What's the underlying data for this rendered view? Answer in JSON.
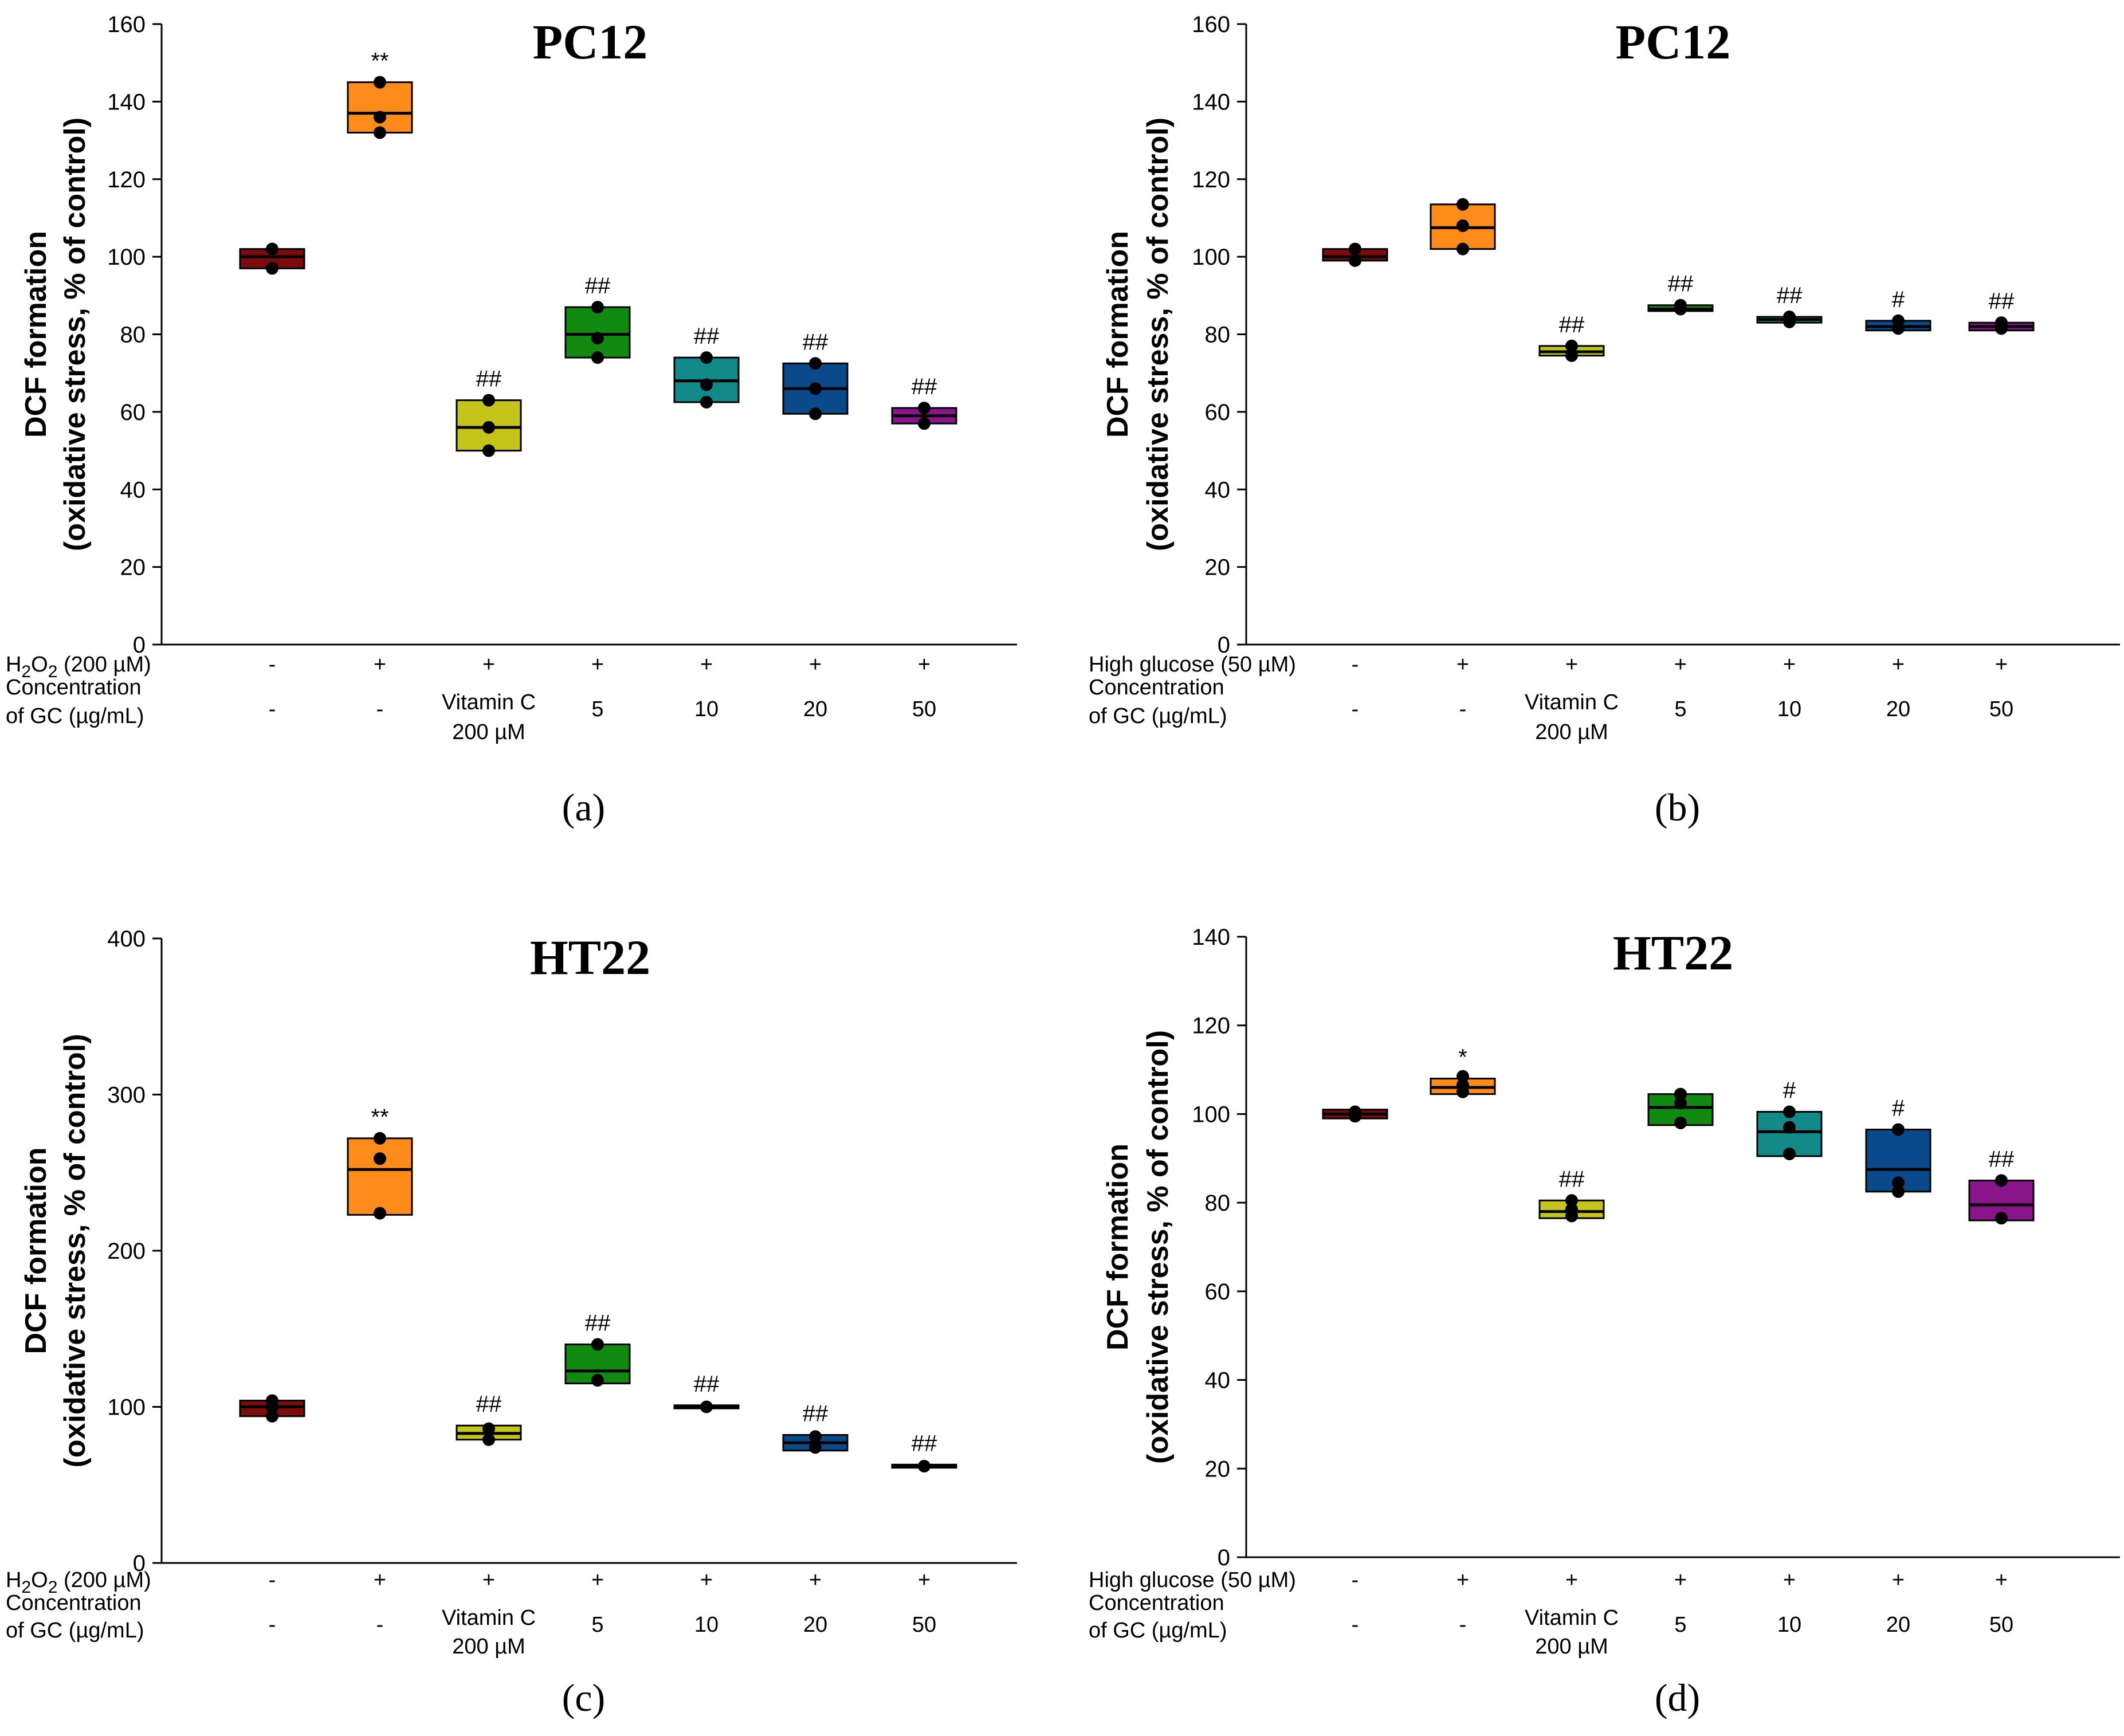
{
  "figure": {
    "x_row1_label_h2o2": "H2O2 (200 µM)",
    "x_row1_label_glucose": "High glucose (50 µM)",
    "x_row2_label_a": "Concentration",
    "x_row2_label_b": "of GC (µg/mL)"
  },
  "chart_data": [
    {
      "type": "box",
      "panel": "(a)",
      "title": "PC12",
      "ylabel_line1": "DCF formation",
      "ylabel_line2": "(oxidative stress, % of control)",
      "ylim": [
        0,
        160
      ],
      "yticks": [
        0,
        20,
        40,
        60,
        80,
        100,
        120,
        140,
        160
      ],
      "row1_label": "H2O2 (200 µM)",
      "row1": [
        "-",
        "+",
        "+",
        "+",
        "+",
        "+",
        "+"
      ],
      "row2": [
        "-",
        "-",
        "Vitamin C",
        "5",
        "10",
        "20",
        "50"
      ],
      "row2_sub": [
        "",
        "",
        "200 µM",
        "",
        "",
        "",
        ""
      ],
      "colors": [
        "#7a0c0c",
        "#ff8c1a",
        "#c4c41a",
        "#128a12",
        "#128a8a",
        "#0a4a8a",
        "#8a148a"
      ],
      "boxes": [
        {
          "low": 97,
          "high": 102,
          "median": 100,
          "points": [
            97,
            102
          ],
          "sig": ""
        },
        {
          "low": 132,
          "high": 145,
          "median": 137,
          "points": [
            132,
            136,
            145
          ],
          "sig": "**"
        },
        {
          "low": 50,
          "high": 63,
          "median": 56,
          "points": [
            50,
            56,
            63
          ],
          "sig": "##"
        },
        {
          "low": 74,
          "high": 87,
          "median": 80,
          "points": [
            74,
            79,
            87
          ],
          "sig": "##"
        },
        {
          "low": 62.5,
          "high": 74,
          "median": 68,
          "points": [
            62.5,
            67,
            74
          ],
          "sig": "##"
        },
        {
          "low": 59.5,
          "high": 72.5,
          "median": 66,
          "points": [
            59.5,
            66,
            72.5
          ],
          "sig": "##"
        },
        {
          "low": 57,
          "high": 61,
          "median": 59,
          "points": [
            57,
            61
          ],
          "sig": "##"
        }
      ]
    },
    {
      "type": "box",
      "panel": "(b)",
      "title": "PC12",
      "ylabel_line1": "DCF formation",
      "ylabel_line2": "(oxidative stress, % of control)",
      "ylim": [
        0,
        160
      ],
      "yticks": [
        0,
        20,
        40,
        60,
        80,
        100,
        120,
        140,
        160
      ],
      "row1_label": "High glucose (50 µM)",
      "row1": [
        "-",
        "+",
        "+",
        "+",
        "+",
        "+",
        "+"
      ],
      "row2": [
        "-",
        "-",
        "Vitamin C",
        "5",
        "10",
        "20",
        "50"
      ],
      "row2_sub": [
        "",
        "",
        "200 µM",
        "",
        "",
        "",
        ""
      ],
      "colors": [
        "#7a0c0c",
        "#ff8c1a",
        "#c4c41a",
        "#128a12",
        "#128a8a",
        "#0a4a8a",
        "#8a148a"
      ],
      "boxes": [
        {
          "low": 99,
          "high": 102,
          "median": 100,
          "points": [
            99,
            102
          ],
          "sig": ""
        },
        {
          "low": 102,
          "high": 113.5,
          "median": 107.5,
          "points": [
            102,
            108,
            113.5
          ],
          "sig": ""
        },
        {
          "low": 74.5,
          "high": 77,
          "median": 75.5,
          "points": [
            74.5,
            77
          ],
          "sig": "##"
        },
        {
          "low": 86,
          "high": 87.5,
          "median": 86.5,
          "points": [
            86.5,
            87.5
          ],
          "sig": "##"
        },
        {
          "low": 83,
          "high": 84.5,
          "median": 83.8,
          "points": [
            83.2,
            84.5
          ],
          "sig": "##"
        },
        {
          "low": 81,
          "high": 83.5,
          "median": 82,
          "points": [
            81.5,
            83.5
          ],
          "sig": "#"
        },
        {
          "low": 81,
          "high": 83,
          "median": 82,
          "points": [
            81.5,
            83
          ],
          "sig": "##"
        }
      ]
    },
    {
      "type": "box",
      "panel": "(c)",
      "title": "HT22",
      "ylabel_line1": "DCF formation",
      "ylabel_line2": "(oxidative stress, % of control)",
      "ylim": [
        0,
        400
      ],
      "yticks": [
        0,
        100,
        200,
        300,
        400
      ],
      "row1_label": "H2O2 (200 µM)",
      "row1": [
        "-",
        "+",
        "+",
        "+",
        "+",
        "+",
        "+"
      ],
      "row2": [
        "-",
        "-",
        "Vitamin C",
        "5",
        "10",
        "20",
        "50"
      ],
      "row2_sub": [
        "",
        "",
        "200 µM",
        "",
        "",
        "",
        ""
      ],
      "colors": [
        "#7a0c0c",
        "#ff8c1a",
        "#c4c41a",
        "#128a12",
        "#128a8a",
        "#0a4a8a",
        "#8a148a"
      ],
      "boxes": [
        {
          "low": 94,
          "high": 104,
          "median": 100,
          "points": [
            94,
            100,
            104
          ],
          "sig": ""
        },
        {
          "low": 223,
          "high": 272,
          "median": 252,
          "points": [
            224,
            259,
            272
          ],
          "sig": "**"
        },
        {
          "low": 79,
          "high": 88,
          "median": 83,
          "points": [
            79,
            86
          ],
          "sig": "##"
        },
        {
          "low": 115,
          "high": 140,
          "median": 123,
          "points": [
            117,
            140
          ],
          "sig": "##"
        },
        {
          "low": 99,
          "high": 101,
          "median": 100,
          "points": [
            100
          ],
          "sig": "##"
        },
        {
          "low": 72,
          "high": 82,
          "median": 77,
          "points": [
            74,
            81
          ],
          "sig": "##"
        },
        {
          "low": 61,
          "high": 63,
          "median": 62,
          "points": [
            62
          ],
          "sig": "##"
        }
      ]
    },
    {
      "type": "box",
      "panel": "(d)",
      "title": "HT22",
      "ylabel_line1": "DCF formation",
      "ylabel_line2": "(oxidative stress, % of control)",
      "ylim": [
        0,
        140
      ],
      "yticks": [
        0,
        20,
        40,
        60,
        80,
        100,
        120,
        140
      ],
      "row1_label": "High glucose (50 µM)",
      "row1": [
        "-",
        "+",
        "+",
        "+",
        "+",
        "+",
        "+"
      ],
      "row2": [
        "-",
        "-",
        "Vitamin C",
        "5",
        "10",
        "20",
        "50"
      ],
      "row2_sub": [
        "",
        "",
        "200 µM",
        "",
        "",
        "",
        ""
      ],
      "colors": [
        "#7a0c0c",
        "#ff8c1a",
        "#c4c41a",
        "#128a12",
        "#128a8a",
        "#0a4a8a",
        "#8a148a"
      ],
      "boxes": [
        {
          "low": 99,
          "high": 101,
          "median": 100,
          "points": [
            99.5,
            100.5
          ],
          "sig": ""
        },
        {
          "low": 104.5,
          "high": 108,
          "median": 106,
          "points": [
            105,
            106.5,
            108.5
          ],
          "sig": "*"
        },
        {
          "low": 76.5,
          "high": 80.5,
          "median": 78,
          "points": [
            77,
            78.5,
            80.5
          ],
          "sig": "##"
        },
        {
          "low": 97.5,
          "high": 104.5,
          "median": 101.5,
          "points": [
            98,
            102.5,
            104.5
          ],
          "sig": ""
        },
        {
          "low": 90.5,
          "high": 100.5,
          "median": 96,
          "points": [
            91,
            97,
            100.5
          ],
          "sig": "#"
        },
        {
          "low": 82.5,
          "high": 96.5,
          "median": 87.5,
          "points": [
            82.5,
            84.5,
            96.5
          ],
          "sig": "#"
        },
        {
          "low": 76,
          "high": 85,
          "median": 79.5,
          "points": [
            76.5,
            85
          ],
          "sig": "##"
        }
      ]
    }
  ]
}
